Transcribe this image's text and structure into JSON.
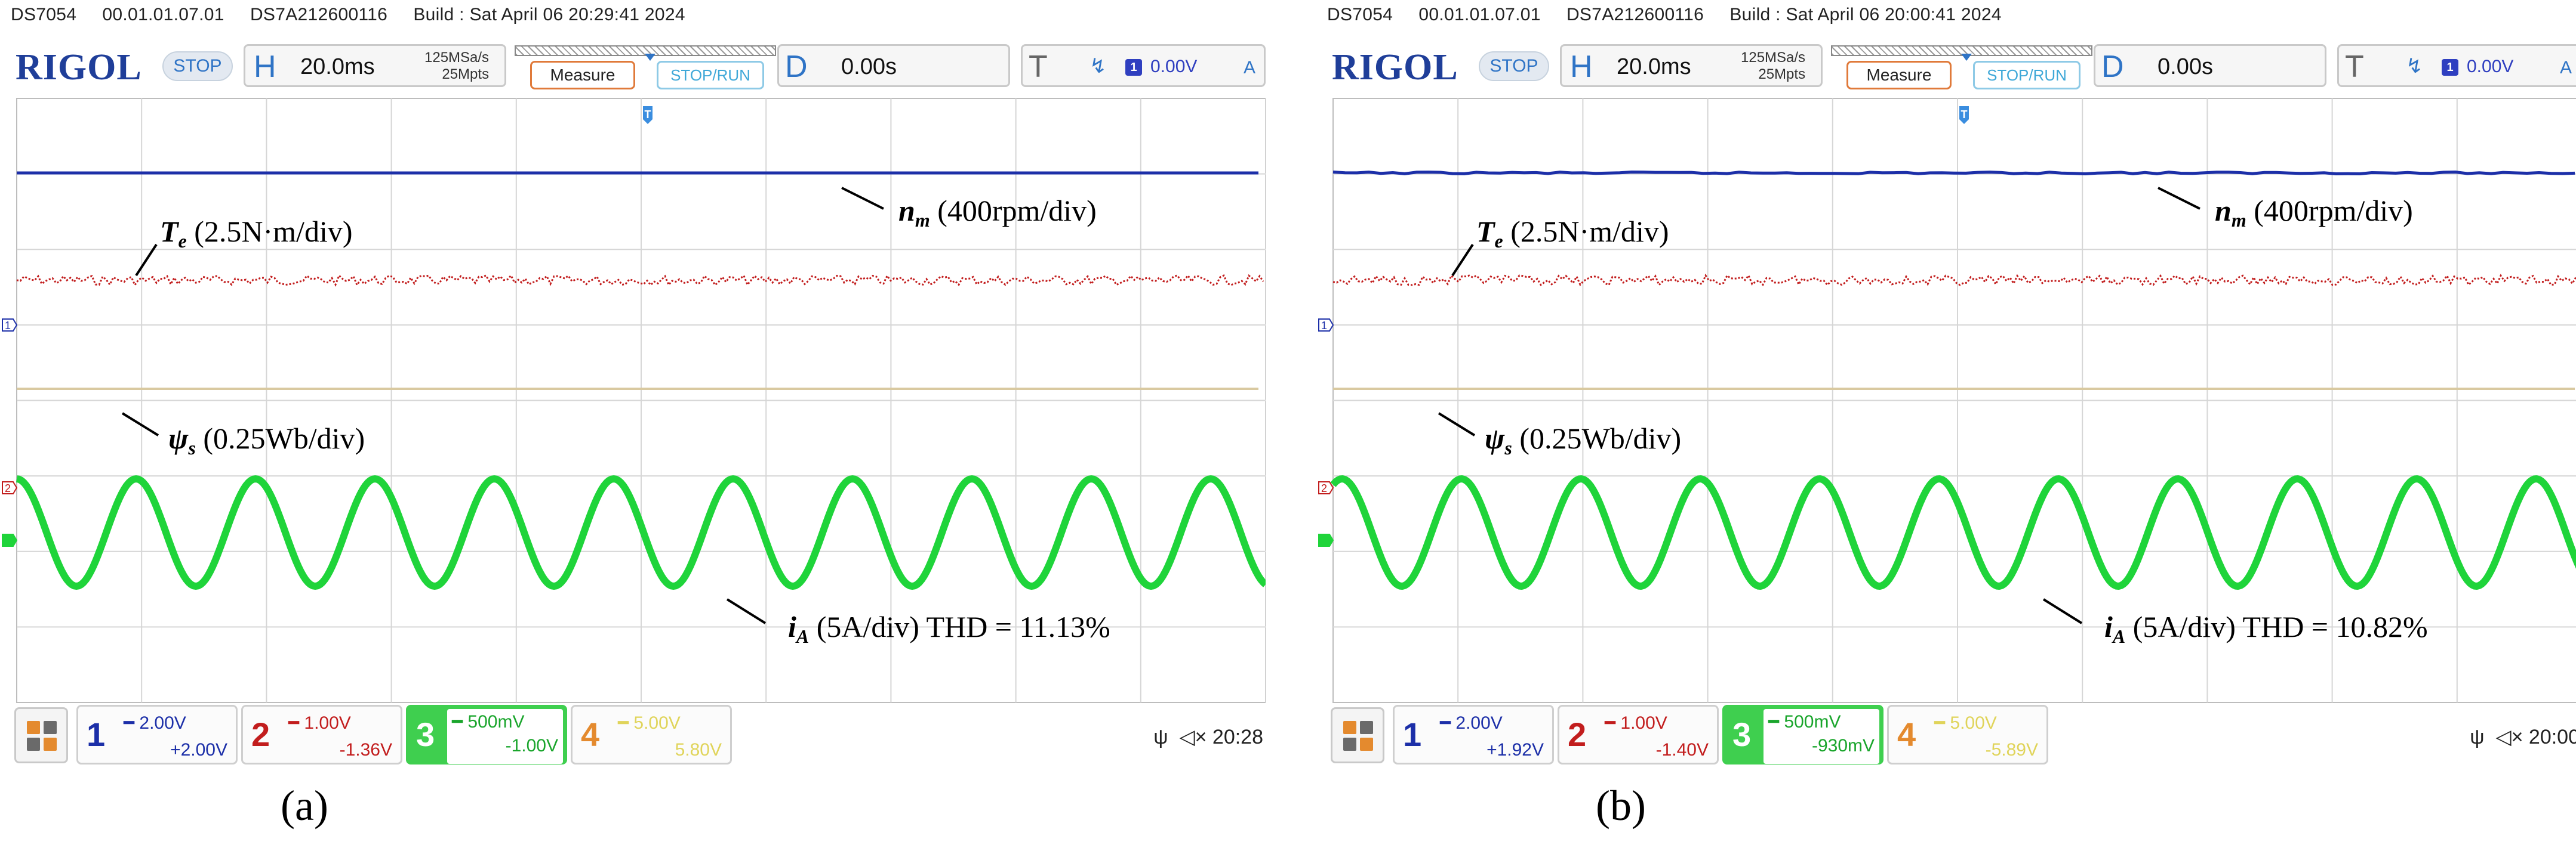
{
  "panels": [
    {
      "build_line": "DS7054     00.01.01.07.01     DS7A212600116     Build : Sat April 06 20:29:41 2024",
      "brand": "RIGOL",
      "run_state": "STOP",
      "horizontal": {
        "key": "H",
        "timebase": "20.0ms",
        "rate": "125MSa/s",
        "points": "25Mpts"
      },
      "measure_label": "Measure",
      "stoprun_label": "STOP/RUN",
      "delay": {
        "key": "D",
        "value": "0.00s"
      },
      "trigger": {
        "key": "T",
        "channel": "1",
        "level": "0.00V",
        "mode": "A"
      },
      "labels": {
        "speed": {
          "sym": "n",
          "sub": "m",
          "text": " (400rpm/div)"
        },
        "torque": {
          "sym": "T",
          "sub": "e",
          "text": " (2.5N·m/div)"
        },
        "flux": {
          "sym": "ψ",
          "sub": "s",
          "text": " (0.25Wb/div)"
        },
        "current": {
          "sym": "i",
          "sub": "A",
          "text": " (5A/div) THD = 11.13%"
        }
      },
      "channels": [
        {
          "num": "1",
          "scale": "2.00V",
          "offset": "+2.00V"
        },
        {
          "num": "2",
          "scale": "1.00V",
          "offset": "-1.36V"
        },
        {
          "num": "3",
          "scale": "500mV",
          "offset": "-1.00V"
        },
        {
          "num": "4",
          "scale": "5.00V",
          "offset": "5.80V"
        }
      ],
      "clock": "20:28",
      "caption": "(a)"
    },
    {
      "build_line": "DS7054     00.01.01.07.01     DS7A212600116     Build : Sat April 06 20:00:41 2024",
      "brand": "RIGOL",
      "run_state": "STOP",
      "horizontal": {
        "key": "H",
        "timebase": "20.0ms",
        "rate": "125MSa/s",
        "points": "25Mpts"
      },
      "measure_label": "Measure",
      "stoprun_label": "STOP/RUN",
      "delay": {
        "key": "D",
        "value": "0.00s"
      },
      "trigger": {
        "key": "T",
        "channel": "1",
        "level": "0.00V",
        "mode": "A"
      },
      "labels": {
        "speed": {
          "sym": "n",
          "sub": "m",
          "text": " (400rpm/div)"
        },
        "torque": {
          "sym": "T",
          "sub": "e",
          "text": " (2.5N·m/div)"
        },
        "flux": {
          "sym": "ψ",
          "sub": "s",
          "text": " (0.25Wb/div)"
        },
        "current": {
          "sym": "i",
          "sub": "A",
          "text": " (5A/div) THD = 10.82%"
        }
      },
      "channels": [
        {
          "num": "1",
          "scale": "2.00V",
          "offset": "+1.92V"
        },
        {
          "num": "2",
          "scale": "1.00V",
          "offset": "-1.40V"
        },
        {
          "num": "3",
          "scale": "500mV",
          "offset": "-930mV"
        },
        {
          "num": "4",
          "scale": "5.00V",
          "offset": "-5.89V"
        }
      ],
      "clock": "20:00",
      "caption": "(b)"
    }
  ],
  "colors": {
    "ch1": "#1c2fa8",
    "ch2": "#c21d1d",
    "ch3": "#1fd43a",
    "ch4": "#d9c9a0",
    "brand": "#1f3e99",
    "accent": "#2f74c6"
  },
  "icons": [
    "menu-grid-icon",
    "usb-icon",
    "speaker-icon",
    "trigger-marker-icon",
    "trigger-edge-icon"
  ]
}
